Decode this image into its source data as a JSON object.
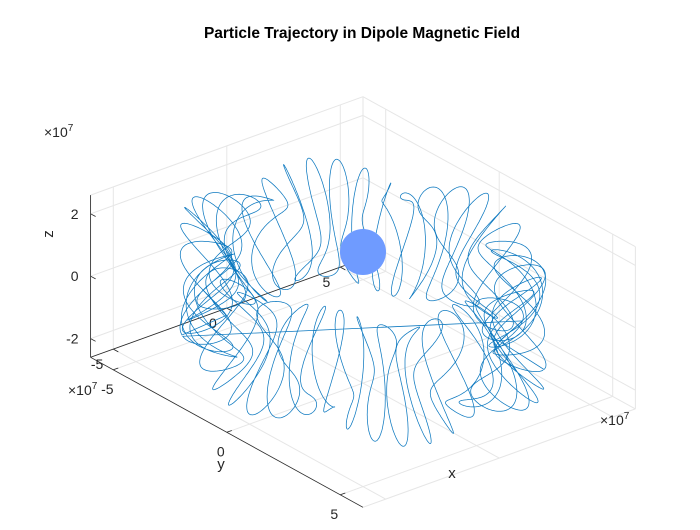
{
  "chart_data": {
    "type": "line3d",
    "title": "Particle Trajectory in Dipole Magnetic Field",
    "xlabel": "x",
    "ylabel": "y",
    "zlabel": "z",
    "x_exponent_label": "×10^7",
    "y_exponent_label": "×10^7",
    "z_exponent_label": "×10^7",
    "xlim": [
      -6,
      6
    ],
    "ylim": [
      -6,
      6
    ],
    "zlim": [
      -2.6,
      2.6
    ],
    "x_ticks": [
      -5,
      0,
      5
    ],
    "y_ticks": [
      -5,
      0,
      5
    ],
    "z_ticks": [
      -2,
      0,
      2
    ],
    "grid": true,
    "view": {
      "azimuth": -37.5,
      "elevation": 30
    },
    "scale_unit": 10000000,
    "series": [
      {
        "name": "trajectory",
        "color": "#0072BD",
        "shape": "gyrating drift around a torus",
        "major_radius_range": [
          4.1,
          5.7
        ],
        "gyro_loops": 90,
        "z_amplitude": 1.9
      },
      {
        "name": "dipole body",
        "color": "#6f9bff",
        "shape": "sphere at origin",
        "center": [
          0,
          0,
          0
        ]
      }
    ]
  }
}
